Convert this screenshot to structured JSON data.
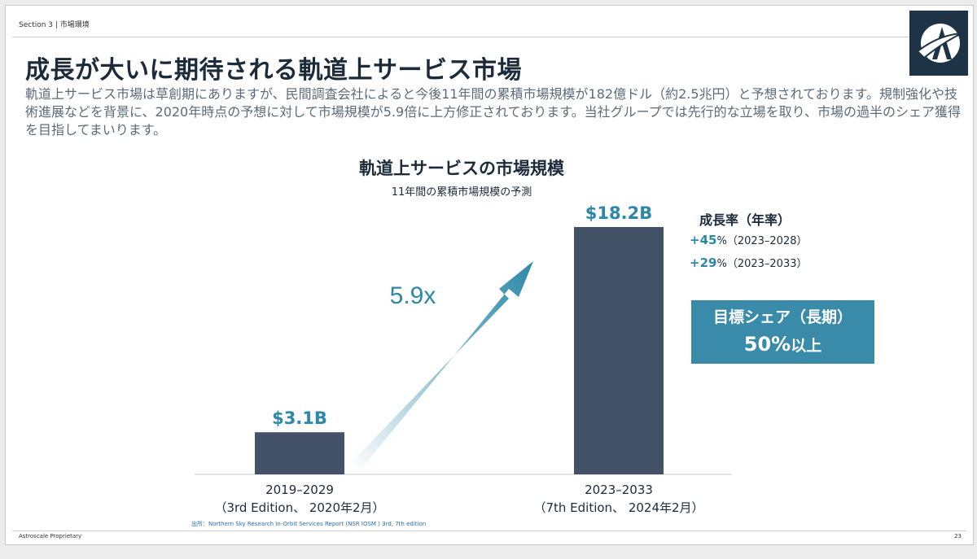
{
  "header": {
    "section": "Section 3 | 市場環境",
    "title": "成長が大いに期待される軌道上サービス市場",
    "description": "軌道上サービス市場は草創期にありますが、民間調査会社によると今後11年間の累積市場規模が182億ドル（約2.5兆円）と予想されております。規制強化や技術進展などを背景に、2020年時点の予想に対して市場規模が5.9倍に上方修正されております。当社グループでは先行的な立場を取り、市場の過半のシェア獲得を目指してまいります。"
  },
  "logo": {
    "icon": "astroscale-logo-icon"
  },
  "chart_data": {
    "type": "bar",
    "title": "軌道上サービスの市場規模",
    "subtitle": "11年間の累積市場規模の予測",
    "categories": [
      "2019–2029",
      "2023–2033"
    ],
    "category_notes": [
      "（3rd Edition、 2020年2月）",
      "（7th Edition、 2024年2月）"
    ],
    "values": [
      3.1,
      18.2
    ],
    "value_labels": [
      "$3.1B",
      "$18.2B"
    ],
    "unit": "USD billions",
    "ylim": [
      0,
      20
    ],
    "annotation": "5.9x",
    "bar_color": "#435266",
    "accent_color": "#2b88a8"
  },
  "growth": {
    "title": "成長率（年率）",
    "rows": [
      {
        "sign": "+",
        "value": "45",
        "unit": "%",
        "period": "（2023–2028）"
      },
      {
        "sign": "+",
        "value": "29",
        "unit": "%",
        "period": "（2023–2033）"
      }
    ]
  },
  "target": {
    "label": "目標シェア（長期）",
    "value": "50%",
    "suffix": "以上"
  },
  "source_note": "出所：Northern Sky Research In-Orbit Services Report (NSR IOSM ) 3rd, 7th edition",
  "footer": {
    "left": "Astroscale Proprietary",
    "page": "23"
  }
}
